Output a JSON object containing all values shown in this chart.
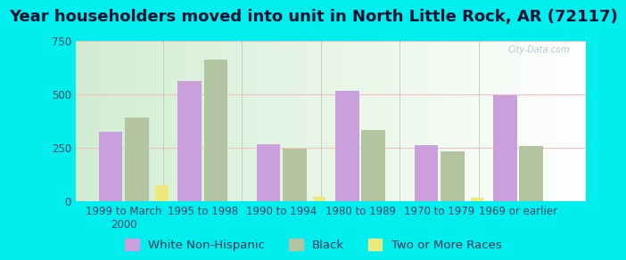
{
  "title": "Year householders moved into unit in North Little Rock, AR (72117)",
  "categories": [
    "1999 to March\n2000",
    "1995 to 1998",
    "1990 to 1994",
    "1980 to 1989",
    "1970 to 1979",
    "1969 or earlier"
  ],
  "series": {
    "White Non-Hispanic": [
      325,
      560,
      265,
      515,
      260,
      495
    ],
    "Black": [
      390,
      660,
      245,
      330,
      230,
      255
    ],
    "Two or More Races": [
      75,
      0,
      20,
      0,
      15,
      0
    ]
  },
  "colors": {
    "White Non-Hispanic": "#c9a0dc",
    "Black": "#b2c4a0",
    "Two or More Races": "#ede87a"
  },
  "ylim": [
    0,
    750
  ],
  "yticks": [
    0,
    250,
    500,
    750
  ],
  "background_color": "#00eeee",
  "grid_color": "#f5c0c0",
  "bar_width": 0.3,
  "title_fontsize": 13,
  "tick_fontsize": 8.5,
  "legend_fontsize": 9.5,
  "watermark": "City-Data.com"
}
